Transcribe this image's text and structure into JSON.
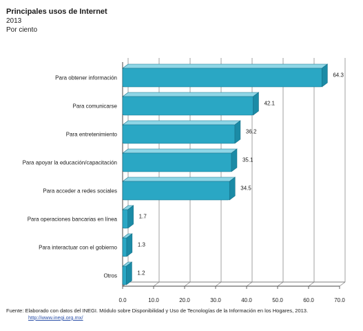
{
  "chart_data": {
    "type": "bar",
    "orientation": "horizontal",
    "title": "Principales usos de Internet",
    "subtitle": "2013",
    "unit_label": "Por ciento",
    "categories": [
      "Para obtener información",
      "Para comunicarse",
      "Para entretenimiento",
      "Para apoyar la educación/capacitación",
      "Para acceder a redes sociales",
      "Para operaciones bancarias en línea",
      "Para interactuar con el gobierno",
      "Otros"
    ],
    "values": [
      64.3,
      42.1,
      36.2,
      35.1,
      34.5,
      1.7,
      1.3,
      1.2
    ],
    "value_labels": [
      "64.3",
      "42.1",
      "36.2",
      "35.1",
      "34.5",
      "1.7",
      "1.3",
      "1.2"
    ],
    "xlim": [
      0,
      70
    ],
    "x_ticks": [
      "0.0",
      "10.0",
      "20.0",
      "30.0",
      "40.0",
      "50.0",
      "60.0",
      "70.0"
    ],
    "grid": true,
    "bar_color": "#2aa7c4",
    "bar_top_color": "#8fd6e6",
    "bar_edge_color": "#17728a"
  },
  "source": {
    "text": "Fuente: Elaborado con datos del INEGI. Módulo sobre Disponibilidad y Uso de Tecnologías de la Información en los Hogares, 2013.",
    "link": "http://www.inegi.org.mx/"
  }
}
